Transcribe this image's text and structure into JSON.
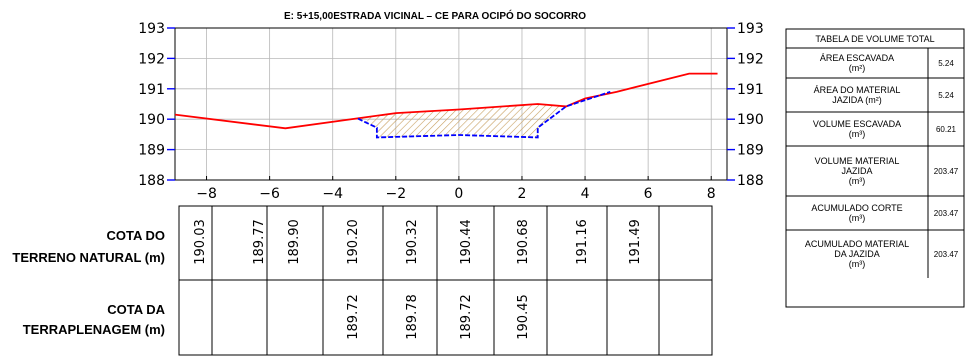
{
  "title": "E: 5+15,00ESTRADA VICINAL  – CE PARA OCIPÓ DO SOCORRO",
  "chart_data": {
    "type": "line",
    "xlim": [
      -9,
      8.5
    ],
    "ylim": [
      188,
      193
    ],
    "x_ticks": [
      -8,
      -6,
      -4,
      -2,
      0,
      2,
      4,
      6,
      8
    ],
    "x_tick_labels": [
      "−8",
      "−6",
      "−4",
      "−2",
      "0",
      "2",
      "4",
      "6",
      "8"
    ],
    "y_ticks": [
      188,
      189,
      190,
      191,
      192,
      193
    ],
    "grid": true,
    "series": [
      {
        "color": "#ff0000",
        "points": [
          [
            -9,
            190.15
          ],
          [
            -5.5,
            189.7
          ],
          [
            -2,
            190.2
          ],
          [
            0,
            190.32
          ],
          [
            2.5,
            190.5
          ],
          [
            3.4,
            190.42
          ],
          [
            4,
            190.68
          ],
          [
            5,
            190.9
          ],
          [
            7.3,
            191.5
          ],
          [
            8.2,
            191.5
          ]
        ]
      },
      {
        "color": "#0000ff",
        "points": [
          [
            -3.2,
            190.02
          ],
          [
            -2.6,
            189.72
          ],
          [
            -2.6,
            189.4
          ],
          [
            0,
            189.48
          ],
          [
            2.5,
            189.4
          ],
          [
            2.5,
            189.72
          ],
          [
            3.4,
            190.42
          ],
          [
            4.8,
            190.9
          ]
        ]
      }
    ]
  },
  "row_labels": {
    "terrain": [
      "COTA DO",
      "TERRENO NATURAL (m)"
    ],
    "grading": [
      "COTA DA",
      "TERRAPLENAGEM (m)"
    ]
  },
  "terrain_values": [
    "190.03",
    "189.77",
    "189.90",
    "190.20",
    "190.32",
    "190.44",
    "190.68",
    "191.16",
    "191.49"
  ],
  "grading_values": [
    "",
    "",
    "",
    "189.72",
    "189.78",
    "189.72",
    "190.45",
    "",
    ""
  ],
  "volume_table": {
    "header": "TABELA DE VOLUME TOTAL",
    "rows": [
      {
        "label": [
          "ÁREA ESCAVADA",
          "(m²)"
        ],
        "value": "5.24"
      },
      {
        "label": [
          "ÁREA DO MATERIAL",
          "JAZIDA (m²)"
        ],
        "value": "5.24"
      },
      {
        "label": [
          "VOLUME ESCAVADA",
          "(m³)"
        ],
        "value": "60.21"
      },
      {
        "label": [
          "VOLUME MATERIAL",
          "JAZIDA",
          "(m³)"
        ],
        "value": "203.47"
      },
      {
        "label": [
          "ACUMULADO CORTE",
          "(m³)"
        ],
        "value": "203.47"
      },
      {
        "label": [
          "ACUMULADO MATERIAL",
          "DA JAZIDA",
          "(m³)"
        ],
        "value": "203.47"
      }
    ]
  }
}
